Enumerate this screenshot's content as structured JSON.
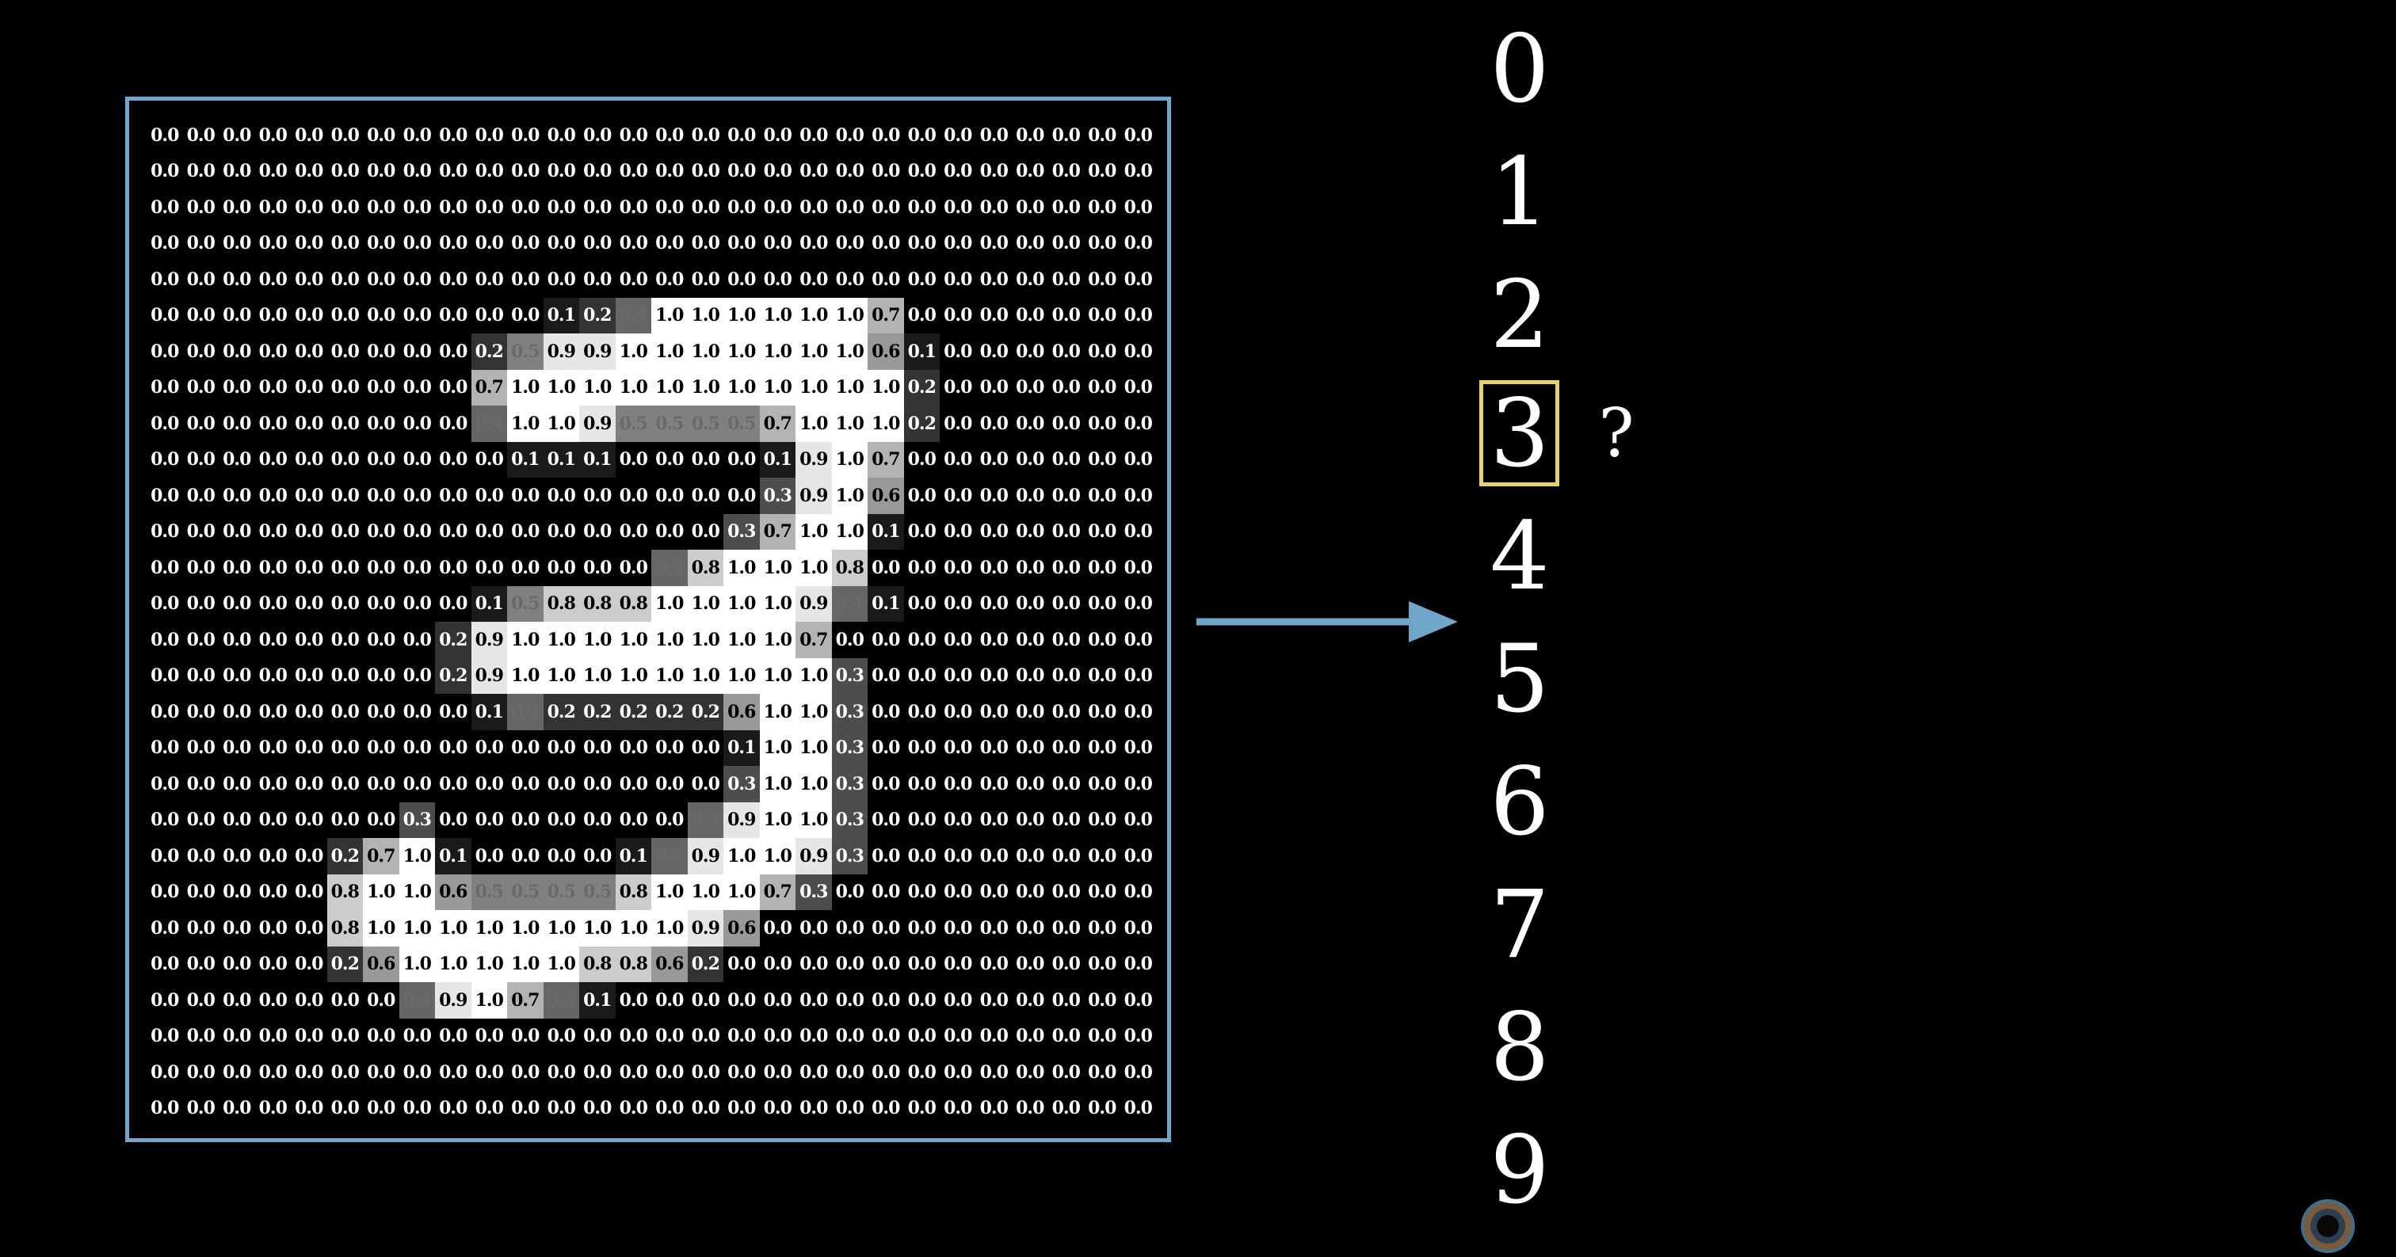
{
  "pixel_grid": {
    "rows": [
      [
        "0.0",
        "0.0",
        "0.0",
        "0.0",
        "0.0",
        "0.0",
        "0.0",
        "0.0",
        "0.0",
        "0.0",
        "0.0",
        "0.0",
        "0.0",
        "0.0",
        "0.0",
        "0.0",
        "0.0",
        "0.0",
        "0.0",
        "0.0",
        "0.0",
        "0.0",
        "0.0",
        "0.0",
        "0.0",
        "0.0",
        "0.0",
        "0.0"
      ],
      [
        "0.0",
        "0.0",
        "0.0",
        "0.0",
        "0.0",
        "0.0",
        "0.0",
        "0.0",
        "0.0",
        "0.0",
        "0.0",
        "0.0",
        "0.0",
        "0.0",
        "0.0",
        "0.0",
        "0.0",
        "0.0",
        "0.0",
        "0.0",
        "0.0",
        "0.0",
        "0.0",
        "0.0",
        "0.0",
        "0.0",
        "0.0",
        "0.0"
      ],
      [
        "0.0",
        "0.0",
        "0.0",
        "0.0",
        "0.0",
        "0.0",
        "0.0",
        "0.0",
        "0.0",
        "0.0",
        "0.0",
        "0.0",
        "0.0",
        "0.0",
        "0.0",
        "0.0",
        "0.0",
        "0.0",
        "0.0",
        "0.0",
        "0.0",
        "0.0",
        "0.0",
        "0.0",
        "0.0",
        "0.0",
        "0.0",
        "0.0"
      ],
      [
        "0.0",
        "0.0",
        "0.0",
        "0.0",
        "0.0",
        "0.0",
        "0.0",
        "0.0",
        "0.0",
        "0.0",
        "0.0",
        "0.0",
        "0.0",
        "0.0",
        "0.0",
        "0.0",
        "0.0",
        "0.0",
        "0.0",
        "0.0",
        "0.0",
        "0.0",
        "0.0",
        "0.0",
        "0.0",
        "0.0",
        "0.0",
        "0.0"
      ],
      [
        "0.0",
        "0.0",
        "0.0",
        "0.0",
        "0.0",
        "0.0",
        "0.0",
        "0.0",
        "0.0",
        "0.0",
        "0.0",
        "0.0",
        "0.0",
        "0.0",
        "0.0",
        "0.0",
        "0.0",
        "0.0",
        "0.0",
        "0.0",
        "0.0",
        "0.0",
        "0.0",
        "0.0",
        "0.0",
        "0.0",
        "0.0",
        "0.0"
      ],
      [
        "0.0",
        "0.0",
        "0.0",
        "0.0",
        "0.0",
        "0.0",
        "0.0",
        "0.0",
        "0.0",
        "0.0",
        "0.0",
        "0.1",
        "0.2",
        "0.4",
        "1.0",
        "1.0",
        "1.0",
        "1.0",
        "1.0",
        "1.0",
        "0.7",
        "0.0",
        "0.0",
        "0.0",
        "0.0",
        "0.0",
        "0.0",
        "0.0"
      ],
      [
        "0.0",
        "0.0",
        "0.0",
        "0.0",
        "0.0",
        "0.0",
        "0.0",
        "0.0",
        "0.0",
        "0.2",
        "0.5",
        "0.9",
        "0.9",
        "1.0",
        "1.0",
        "1.0",
        "1.0",
        "1.0",
        "1.0",
        "1.0",
        "0.6",
        "0.1",
        "0.0",
        "0.0",
        "0.0",
        "0.0",
        "0.0",
        "0.0"
      ],
      [
        "0.0",
        "0.0",
        "0.0",
        "0.0",
        "0.0",
        "0.0",
        "0.0",
        "0.0",
        "0.0",
        "0.7",
        "1.0",
        "1.0",
        "1.0",
        "1.0",
        "1.0",
        "1.0",
        "1.0",
        "1.0",
        "1.0",
        "1.0",
        "1.0",
        "0.2",
        "0.0",
        "0.0",
        "0.0",
        "0.0",
        "0.0",
        "0.0"
      ],
      [
        "0.0",
        "0.0",
        "0.0",
        "0.0",
        "0.0",
        "0.0",
        "0.0",
        "0.0",
        "0.0",
        "0.4",
        "1.0",
        "1.0",
        "0.9",
        "0.5",
        "0.5",
        "0.5",
        "0.5",
        "0.7",
        "1.0",
        "1.0",
        "1.0",
        "0.2",
        "0.0",
        "0.0",
        "0.0",
        "0.0",
        "0.0",
        "0.0"
      ],
      [
        "0.0",
        "0.0",
        "0.0",
        "0.0",
        "0.0",
        "0.0",
        "0.0",
        "0.0",
        "0.0",
        "0.0",
        "0.1",
        "0.1",
        "0.1",
        "0.0",
        "0.0",
        "0.0",
        "0.0",
        "0.1",
        "0.9",
        "1.0",
        "0.7",
        "0.0",
        "0.0",
        "0.0",
        "0.0",
        "0.0",
        "0.0",
        "0.0"
      ],
      [
        "0.0",
        "0.0",
        "0.0",
        "0.0",
        "0.0",
        "0.0",
        "0.0",
        "0.0",
        "0.0",
        "0.0",
        "0.0",
        "0.0",
        "0.0",
        "0.0",
        "0.0",
        "0.0",
        "0.0",
        "0.3",
        "0.9",
        "1.0",
        "0.6",
        "0.0",
        "0.0",
        "0.0",
        "0.0",
        "0.0",
        "0.0",
        "0.0"
      ],
      [
        "0.0",
        "0.0",
        "0.0",
        "0.0",
        "0.0",
        "0.0",
        "0.0",
        "0.0",
        "0.0",
        "0.0",
        "0.0",
        "0.0",
        "0.0",
        "0.0",
        "0.0",
        "0.0",
        "0.3",
        "0.7",
        "1.0",
        "1.0",
        "0.1",
        "0.0",
        "0.0",
        "0.0",
        "0.0",
        "0.0",
        "0.0",
        "0.0"
      ],
      [
        "0.0",
        "0.0",
        "0.0",
        "0.0",
        "0.0",
        "0.0",
        "0.0",
        "0.0",
        "0.0",
        "0.0",
        "0.0",
        "0.0",
        "0.0",
        "0.0",
        "0.4",
        "0.8",
        "1.0",
        "1.0",
        "1.0",
        "0.8",
        "0.0",
        "0.0",
        "0.0",
        "0.0",
        "0.0",
        "0.0",
        "0.0",
        "0.0"
      ],
      [
        "0.0",
        "0.0",
        "0.0",
        "0.0",
        "0.0",
        "0.0",
        "0.0",
        "0.0",
        "0.0",
        "0.1",
        "0.5",
        "0.8",
        "0.8",
        "0.8",
        "1.0",
        "1.0",
        "1.0",
        "1.0",
        "0.9",
        "0.4",
        "0.1",
        "0.0",
        "0.0",
        "0.0",
        "0.0",
        "0.0",
        "0.0",
        "0.0"
      ],
      [
        "0.0",
        "0.0",
        "0.0",
        "0.0",
        "0.0",
        "0.0",
        "0.0",
        "0.0",
        "0.2",
        "0.9",
        "1.0",
        "1.0",
        "1.0",
        "1.0",
        "1.0",
        "1.0",
        "1.0",
        "1.0",
        "0.7",
        "0.0",
        "0.0",
        "0.0",
        "0.0",
        "0.0",
        "0.0",
        "0.0",
        "0.0",
        "0.0"
      ],
      [
        "0.0",
        "0.0",
        "0.0",
        "0.0",
        "0.0",
        "0.0",
        "0.0",
        "0.0",
        "0.2",
        "0.9",
        "1.0",
        "1.0",
        "1.0",
        "1.0",
        "1.0",
        "1.0",
        "1.0",
        "1.0",
        "1.0",
        "0.3",
        "0.0",
        "0.0",
        "0.0",
        "0.0",
        "0.0",
        "0.0",
        "0.0",
        "0.0"
      ],
      [
        "0.0",
        "0.0",
        "0.0",
        "0.0",
        "0.0",
        "0.0",
        "0.0",
        "0.0",
        "0.0",
        "0.1",
        "0.4",
        "0.2",
        "0.2",
        "0.2",
        "0.2",
        "0.2",
        "0.6",
        "1.0",
        "1.0",
        "0.3",
        "0.0",
        "0.0",
        "0.0",
        "0.0",
        "0.0",
        "0.0",
        "0.0",
        "0.0"
      ],
      [
        "0.0",
        "0.0",
        "0.0",
        "0.0",
        "0.0",
        "0.0",
        "0.0",
        "0.0",
        "0.0",
        "0.0",
        "0.0",
        "0.0",
        "0.0",
        "0.0",
        "0.0",
        "0.0",
        "0.1",
        "1.0",
        "1.0",
        "0.3",
        "0.0",
        "0.0",
        "0.0",
        "0.0",
        "0.0",
        "0.0",
        "0.0",
        "0.0"
      ],
      [
        "0.0",
        "0.0",
        "0.0",
        "0.0",
        "0.0",
        "0.0",
        "0.0",
        "0.0",
        "0.0",
        "0.0",
        "0.0",
        "0.0",
        "0.0",
        "0.0",
        "0.0",
        "0.0",
        "0.3",
        "1.0",
        "1.0",
        "0.3",
        "0.0",
        "0.0",
        "0.0",
        "0.0",
        "0.0",
        "0.0",
        "0.0",
        "0.0"
      ],
      [
        "0.0",
        "0.0",
        "0.0",
        "0.0",
        "0.0",
        "0.0",
        "0.0",
        "0.3",
        "0.0",
        "0.0",
        "0.0",
        "0.0",
        "0.0",
        "0.0",
        "0.0",
        "0.4",
        "0.9",
        "1.0",
        "1.0",
        "0.3",
        "0.0",
        "0.0",
        "0.0",
        "0.0",
        "0.0",
        "0.0",
        "0.0",
        "0.0"
      ],
      [
        "0.0",
        "0.0",
        "0.0",
        "0.0",
        "0.0",
        "0.2",
        "0.7",
        "1.0",
        "0.1",
        "0.0",
        "0.0",
        "0.0",
        "0.0",
        "0.1",
        "0.4",
        "0.9",
        "1.0",
        "1.0",
        "0.9",
        "0.3",
        "0.0",
        "0.0",
        "0.0",
        "0.0",
        "0.0",
        "0.0",
        "0.0",
        "0.0"
      ],
      [
        "0.0",
        "0.0",
        "0.0",
        "0.0",
        "0.0",
        "0.8",
        "1.0",
        "1.0",
        "0.6",
        "0.5",
        "0.5",
        "0.5",
        "0.5",
        "0.8",
        "1.0",
        "1.0",
        "1.0",
        "0.7",
        "0.3",
        "0.0",
        "0.0",
        "0.0",
        "0.0",
        "0.0",
        "0.0",
        "0.0",
        "0.0",
        "0.0"
      ],
      [
        "0.0",
        "0.0",
        "0.0",
        "0.0",
        "0.0",
        "0.8",
        "1.0",
        "1.0",
        "1.0",
        "1.0",
        "1.0",
        "1.0",
        "1.0",
        "1.0",
        "1.0",
        "0.9",
        "0.6",
        "0.0",
        "0.0",
        "0.0",
        "0.0",
        "0.0",
        "0.0",
        "0.0",
        "0.0",
        "0.0",
        "0.0",
        "0.0"
      ],
      [
        "0.0",
        "0.0",
        "0.0",
        "0.0",
        "0.0",
        "0.2",
        "0.6",
        "1.0",
        "1.0",
        "1.0",
        "1.0",
        "1.0",
        "0.8",
        "0.8",
        "0.6",
        "0.2",
        "0.0",
        "0.0",
        "0.0",
        "0.0",
        "0.0",
        "0.0",
        "0.0",
        "0.0",
        "0.0",
        "0.0",
        "0.0",
        "0.0"
      ],
      [
        "0.0",
        "0.0",
        "0.0",
        "0.0",
        "0.0",
        "0.0",
        "0.0",
        "0.4",
        "0.9",
        "1.0",
        "0.7",
        "0.4",
        "0.1",
        "0.0",
        "0.0",
        "0.0",
        "0.0",
        "0.0",
        "0.0",
        "0.0",
        "0.0",
        "0.0",
        "0.0",
        "0.0",
        "0.0",
        "0.0",
        "0.0",
        "0.0"
      ],
      [
        "0.0",
        "0.0",
        "0.0",
        "0.0",
        "0.0",
        "0.0",
        "0.0",
        "0.0",
        "0.0",
        "0.0",
        "0.0",
        "0.0",
        "0.0",
        "0.0",
        "0.0",
        "0.0",
        "0.0",
        "0.0",
        "0.0",
        "0.0",
        "0.0",
        "0.0",
        "0.0",
        "0.0",
        "0.0",
        "0.0",
        "0.0",
        "0.0"
      ],
      [
        "0.0",
        "0.0",
        "0.0",
        "0.0",
        "0.0",
        "0.0",
        "0.0",
        "0.0",
        "0.0",
        "0.0",
        "0.0",
        "0.0",
        "0.0",
        "0.0",
        "0.0",
        "0.0",
        "0.0",
        "0.0",
        "0.0",
        "0.0",
        "0.0",
        "0.0",
        "0.0",
        "0.0",
        "0.0",
        "0.0",
        "0.0",
        "0.0"
      ],
      [
        "0.0",
        "0.0",
        "0.0",
        "0.0",
        "0.0",
        "0.0",
        "0.0",
        "0.0",
        "0.0",
        "0.0",
        "0.0",
        "0.0",
        "0.0",
        "0.0",
        "0.0",
        "0.0",
        "0.0",
        "0.0",
        "0.0",
        "0.0",
        "0.0",
        "0.0",
        "0.0",
        "0.0",
        "0.0",
        "0.0",
        "0.0",
        "0.0"
      ]
    ]
  },
  "digits": [
    "0",
    "1",
    "2",
    "3",
    "4",
    "5",
    "6",
    "7",
    "8",
    "9"
  ],
  "highlighted_digit": "3",
  "question_mark": "?",
  "colors": {
    "background": "#000000",
    "frame_border": "#6fa6c9",
    "arrow": "#6fa6c9",
    "highlight": "#e8d462",
    "digit_text": "#ffffff"
  },
  "icons": {
    "arrow": "right-arrow-icon",
    "logo": "pi-creature-eye-logo"
  }
}
